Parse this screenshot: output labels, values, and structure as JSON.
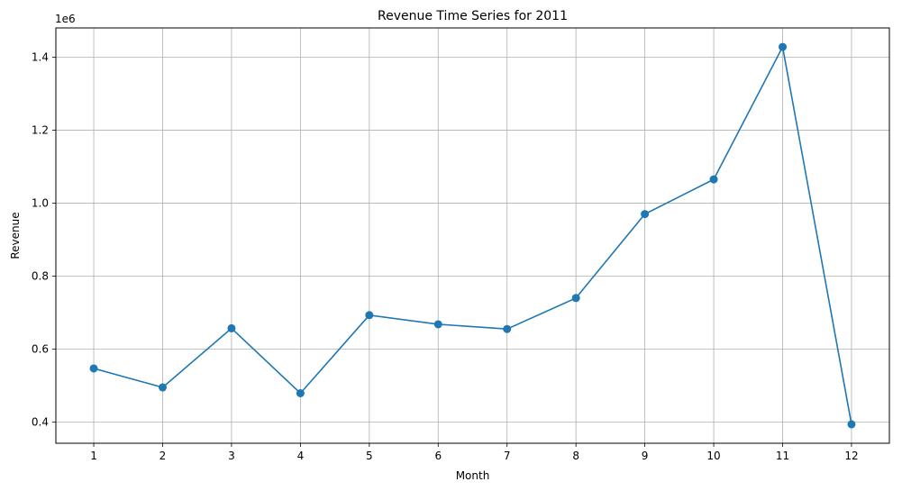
{
  "chart_data": {
    "type": "line",
    "title": "Revenue Time Series for 2011",
    "xlabel": "Month",
    "ylabel": "Revenue",
    "y_offset_label": "1e6",
    "x": [
      1,
      2,
      3,
      4,
      5,
      6,
      7,
      8,
      9,
      10,
      11,
      12
    ],
    "series": [
      {
        "values": [
          547000,
          495000,
          657000,
          479000,
          693000,
          668000,
          655000,
          740000,
          970000,
          1065000,
          1428000,
          394000
        ]
      }
    ],
    "x_ticks": [
      1,
      2,
      3,
      4,
      5,
      6,
      7,
      8,
      9,
      10,
      11,
      12
    ],
    "x_tick_labels": [
      "1",
      "2",
      "3",
      "4",
      "5",
      "6",
      "7",
      "8",
      "9",
      "10",
      "11",
      "12"
    ],
    "y_ticks": [
      400000,
      600000,
      800000,
      1000000,
      1200000,
      1400000
    ],
    "y_tick_labels": [
      "0.4",
      "0.6",
      "0.8",
      "1.0",
      "1.2",
      "1.4"
    ],
    "xlim": [
      0.45,
      12.55
    ],
    "ylim": [
      342000,
      1480000
    ],
    "grid": true,
    "markers": true,
    "line_color": "#1f77b4",
    "grid_color": "#b0b0b0"
  }
}
